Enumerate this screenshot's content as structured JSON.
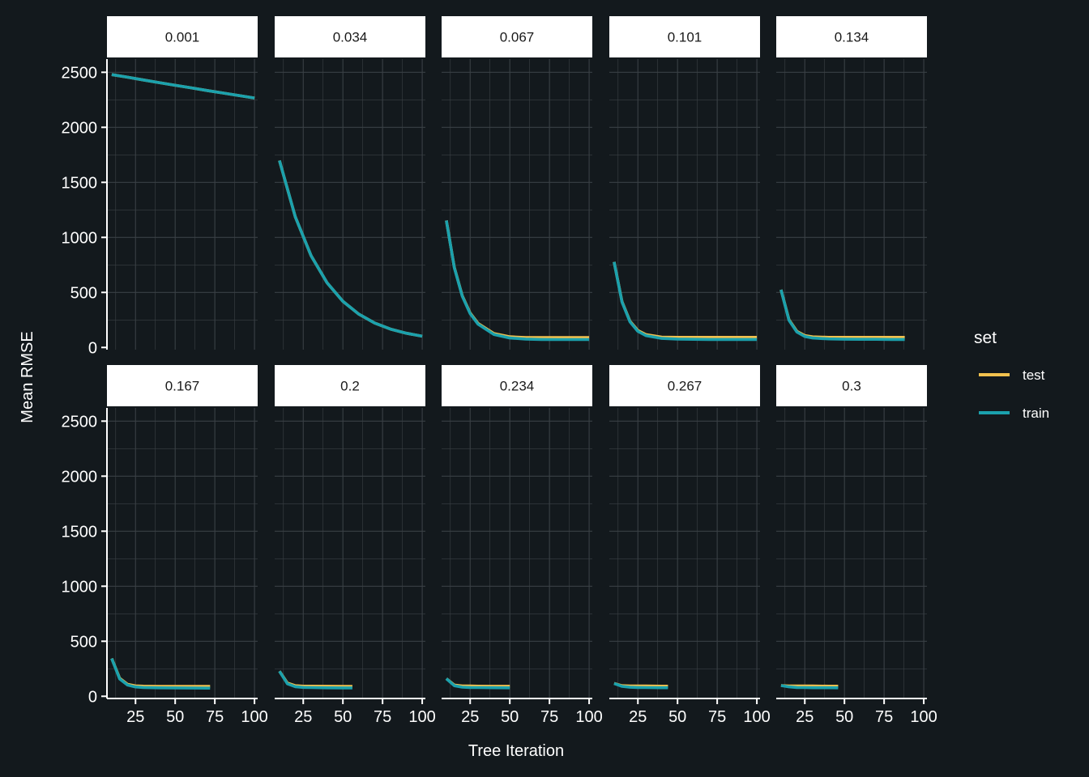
{
  "chart_data": {
    "type": "line",
    "facet_variable": "learning rate",
    "xlabel": "Tree Iteration",
    "ylabel": "Mean RMSE",
    "xlim": [
      7,
      102
    ],
    "ylim": [
      -20,
      2620
    ],
    "x_ticks": [
      25,
      50,
      75,
      100
    ],
    "y_ticks": [
      0,
      500,
      1000,
      1500,
      2000,
      2500
    ],
    "grid": true,
    "legend": {
      "title": "set",
      "position": "right",
      "entries": [
        {
          "label": "test",
          "color": "#f2c14e"
        },
        {
          "label": "train",
          "color": "#1ba1ad"
        }
      ]
    },
    "panels": [
      {
        "label": "0.001",
        "x": [
          10,
          20,
          30,
          40,
          50,
          60,
          70,
          80,
          90,
          100
        ],
        "series": [
          {
            "name": "test",
            "values": [
              2479,
              2455,
              2430,
              2406,
              2382,
              2359,
              2335,
              2312,
              2289,
              2266
            ]
          },
          {
            "name": "train",
            "values": [
              2479,
              2455,
              2430,
              2406,
              2382,
              2359,
              2335,
              2312,
              2289,
              2266
            ]
          }
        ]
      },
      {
        "label": "0.034",
        "x": [
          10,
          20,
          30,
          40,
          50,
          60,
          70,
          80,
          90,
          100
        ],
        "series": [
          {
            "name": "test",
            "values": [
              1698,
              1185,
              832,
              588,
              419,
              303,
              222,
              167,
              129,
              102
            ]
          },
          {
            "name": "train",
            "values": [
              1698,
              1185,
              832,
              588,
              419,
              303,
              222,
              167,
              129,
              102
            ]
          }
        ]
      },
      {
        "label": "0.067",
        "x": [
          10,
          15,
          20,
          25,
          30,
          40,
          50,
          60,
          70,
          80,
          90,
          100
        ],
        "series": [
          {
            "name": "test",
            "values": [
              1154,
              728,
              470,
              313,
              218,
              126,
              97,
              90,
              90,
              90,
              90,
              90
            ]
          },
          {
            "name": "train",
            "values": [
              1154,
              726,
              466,
              308,
              212,
              118,
              86,
              76,
              73,
              72,
              72,
              72
            ]
          }
        ]
      },
      {
        "label": "0.101",
        "x": [
          10,
          15,
          20,
          25,
          30,
          40,
          50,
          60,
          70,
          80,
          90,
          100
        ],
        "series": [
          {
            "name": "test",
            "values": [
              777,
              415,
              238,
              154,
              117,
              94,
              92,
              92,
              92,
              92,
              92,
              92
            ]
          },
          {
            "name": "train",
            "values": [
              777,
              412,
              233,
              147,
              108,
              82,
              76,
              74,
              73,
              73,
              73,
              73
            ]
          }
        ]
      },
      {
        "label": "0.134",
        "x": [
          10,
          15,
          20,
          25,
          30,
          40,
          50,
          60,
          70,
          80,
          88
        ],
        "series": [
          {
            "name": "test",
            "values": [
              524,
              252,
              146,
              108,
              96,
              92,
              92,
              92,
              92,
              92,
              92
            ]
          },
          {
            "name": "train",
            "values": [
              524,
              248,
              140,
              100,
              86,
              78,
              75,
              74,
              74,
              73,
              73
            ]
          }
        ]
      },
      {
        "label": "0.167",
        "x": [
          10,
          15,
          20,
          25,
          30,
          40,
          50,
          60,
          72
        ],
        "series": [
          {
            "name": "test",
            "values": [
              343,
              163,
              109,
              95,
              92,
              90,
              90,
              90,
              90
            ]
          },
          {
            "name": "train",
            "values": [
              343,
              158,
              102,
              85,
              80,
              77,
              76,
              75,
              74
            ]
          }
        ]
      },
      {
        "label": "0.2",
        "x": [
          10,
          15,
          20,
          25,
          30,
          40,
          50,
          56
        ],
        "series": [
          {
            "name": "test",
            "values": [
              228,
              120,
              96,
              92,
              92,
              91,
              90,
              90
            ]
          },
          {
            "name": "train",
            "values": [
              228,
              114,
              87,
              81,
              79,
              77,
              76,
              76
            ]
          }
        ]
      },
      {
        "label": "0.234",
        "x": [
          10,
          15,
          20,
          25,
          30,
          40,
          50
        ],
        "series": [
          {
            "name": "test",
            "values": [
              160,
              102,
              94,
              93,
              92,
              91,
              91
            ]
          },
          {
            "name": "train",
            "values": [
              160,
              96,
              83,
              80,
              79,
              78,
              77
            ]
          }
        ]
      },
      {
        "label": "0.267",
        "x": [
          10,
          15,
          20,
          25,
          30,
          40,
          44
        ],
        "series": [
          {
            "name": "test",
            "values": [
              117,
              96,
              94,
              93,
              93,
              92,
              92
            ]
          },
          {
            "name": "train",
            "values": [
              117,
              90,
              82,
              80,
              79,
              78,
              78
            ]
          }
        ]
      },
      {
        "label": "0.3",
        "x": [
          10,
          15,
          20,
          25,
          30,
          40,
          46
        ],
        "series": [
          {
            "name": "test",
            "values": [
              98,
              94,
              93,
              93,
              93,
              92,
              92
            ]
          },
          {
            "name": "train",
            "values": [
              98,
              86,
              80,
              79,
              78,
              78,
              77
            ]
          }
        ]
      }
    ]
  }
}
